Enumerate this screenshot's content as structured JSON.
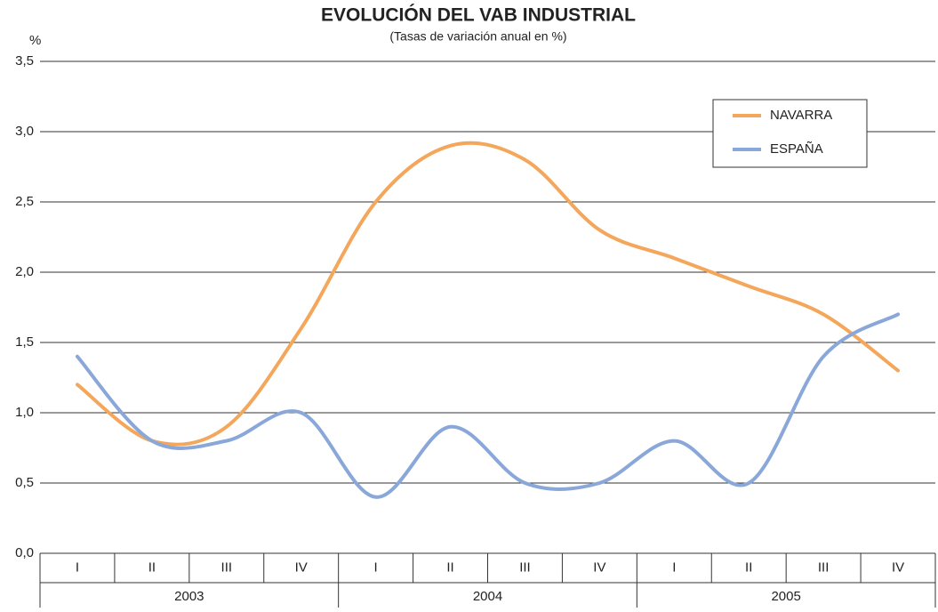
{
  "chart_data": {
    "type": "line",
    "title": "EVOLUCIÓN DEL VAB INDUSTRIAL",
    "subtitle": "(Tasas de variación anual en %)",
    "y_axis_label": "%",
    "categories": [
      "I",
      "II",
      "III",
      "IV",
      "I",
      "II",
      "III",
      "IV",
      "I",
      "II",
      "III",
      "IV"
    ],
    "years": [
      "2003",
      "2004",
      "2005"
    ],
    "series": [
      {
        "name": "NAVARRA",
        "color": "#f4a65a",
        "values": [
          1.2,
          0.8,
          0.9,
          1.6,
          2.5,
          2.9,
          2.8,
          2.3,
          2.1,
          1.9,
          1.7,
          1.3
        ]
      },
      {
        "name": "ESPAÑA",
        "color": "#8aa7d9",
        "values": [
          1.4,
          0.8,
          0.8,
          1.0,
          0.4,
          0.9,
          0.5,
          0.5,
          0.8,
          0.5,
          1.4,
          1.7
        ]
      }
    ],
    "ylim": [
      0,
      3.5
    ],
    "yticks": [
      {
        "value": 0,
        "label": "0,0"
      },
      {
        "value": 0.5,
        "label": "0,5"
      },
      {
        "value": 1,
        "label": "1,0"
      },
      {
        "value": 1.5,
        "label": "1,5"
      },
      {
        "value": 2,
        "label": "2,0"
      },
      {
        "value": 2.5,
        "label": "2,5"
      },
      {
        "value": 3,
        "label": "3,0"
      },
      {
        "value": 3.5,
        "label": "3,5"
      }
    ],
    "grid": true,
    "legend": "top-right"
  }
}
